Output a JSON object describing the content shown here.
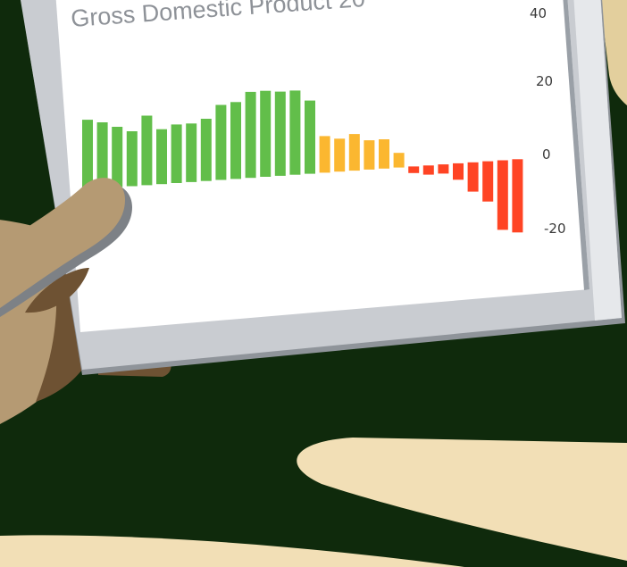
{
  "colors": {
    "background": "#0f2a0c",
    "sand": "#f2dfb6",
    "tablet_frame": "#c9ccd1",
    "screen": "#ffffff",
    "positive_high": "#62be4a",
    "positive_low": "#fbb730",
    "negative": "#ff4424",
    "skin": "#b59a73",
    "skin_shadow": "#6e5233"
  },
  "chart_data": {
    "type": "bar",
    "title": "Gross Domestic Product 20",
    "yticks": [
      "40",
      "20",
      "0",
      "-20"
    ],
    "ylim": [
      -20,
      40
    ],
    "grid": false,
    "values": [
      19,
      18,
      16.5,
      15,
      19,
      15,
      16,
      16,
      17,
      20.5,
      21,
      23.5,
      23.5,
      23,
      23,
      20,
      10,
      9,
      10,
      8,
      8,
      4,
      -1.8,
      -2.5,
      -2.5,
      -4.5,
      -8,
      -11,
      -19,
      -20
    ]
  }
}
